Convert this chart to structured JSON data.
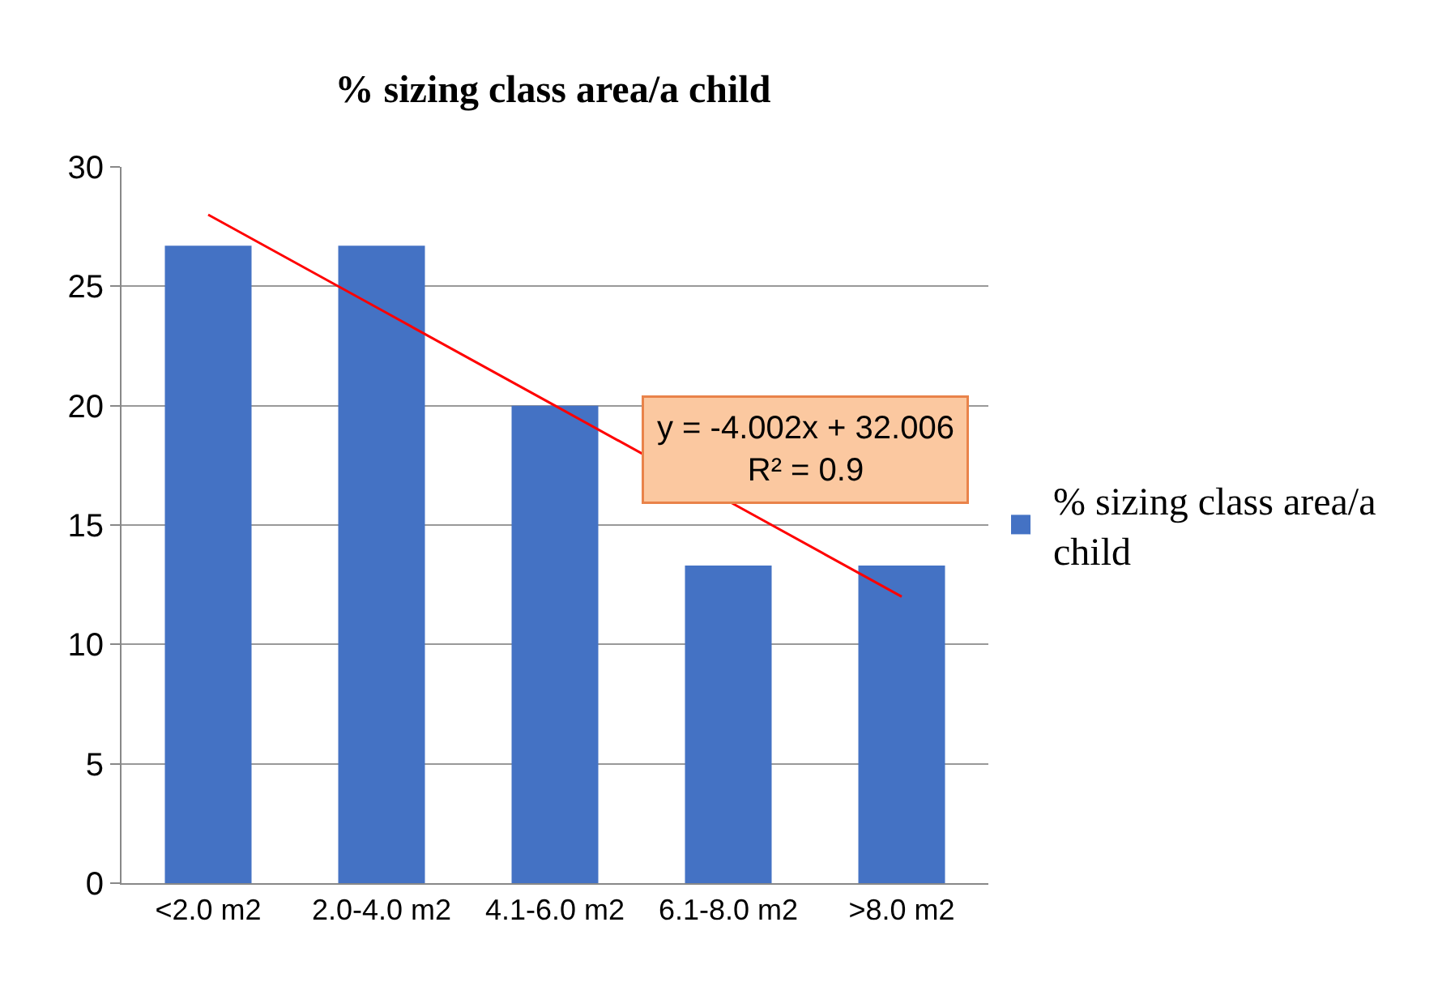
{
  "chart_data": {
    "type": "bar",
    "title": "% sizing class area/a child",
    "categories": [
      "<2.0 m2",
      "2.0-4.0 m2",
      "4.1-6.0 m2",
      "6.1-8.0 m2",
      ">8.0 m2"
    ],
    "series": [
      {
        "name": "% sizing class area/a child",
        "color": "#4472c4",
        "values": [
          26.7,
          26.7,
          20,
          13.3,
          13.3
        ]
      },
      {
        "type": "line",
        "color": "#ff0000",
        "values": [
          28.0,
          24.0,
          20.0,
          16.0,
          12.0
        ]
      }
    ],
    "ylim": [
      0,
      30
    ],
    "yticks": [
      0,
      5,
      10,
      15,
      20,
      25,
      30
    ],
    "grid": "y",
    "legend": "right",
    "marker": "none",
    "annotations": [
      "y = -4.002x + 32.006\nR² = 0.9"
    ]
  }
}
